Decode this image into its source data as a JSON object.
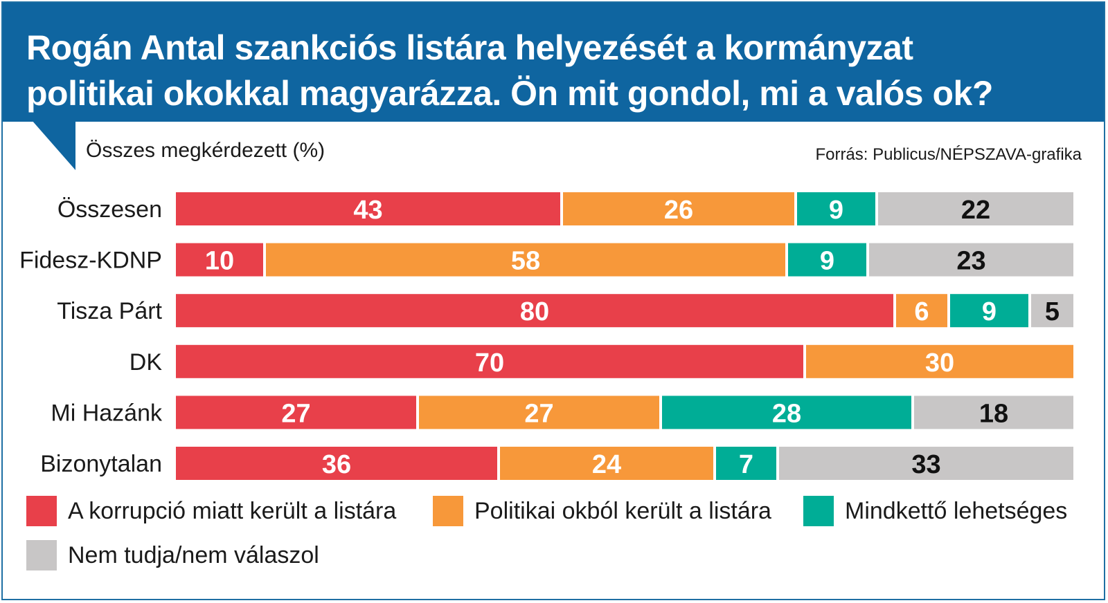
{
  "header": {
    "title_line1": "Rogán Antal szankciós listára helyezését a kormányzat",
    "title_line2": "politikai okokkal magyarázza. Ön mit gondol, mi a valós ok?"
  },
  "subtitle": "Összes megkérdezett (%)",
  "source": "Forrás: Publicus/NÉPSZAVA-grafika",
  "colors": {
    "header_bg": "#0f65a0",
    "corruption": "#e8404a",
    "political": "#f7983a",
    "both": "#00ad96",
    "dont_know": "#c8c6c6"
  },
  "chart_data": {
    "type": "bar",
    "orientation": "horizontal",
    "stacked": true,
    "title": "Rogán Antal szankciós listára helyezését a kormányzat politikai okokkal magyarázza. Ön mit gondol, mi a valós ok?",
    "ylabel": "Összes megkérdezett (%)",
    "categories": [
      "Összesen",
      "Fidesz-KDNP",
      "Tisza Párt",
      "DK",
      "Mi Hazánk",
      "Bizonytalan"
    ],
    "series": [
      {
        "name": "A korrupció miatt került a listára",
        "values": [
          43,
          10,
          80,
          70,
          27,
          36
        ]
      },
      {
        "name": "Politikai okból került a listára",
        "values": [
          26,
          58,
          6,
          30,
          27,
          24
        ]
      },
      {
        "name": "Mindkettő lehetséges",
        "values": [
          9,
          9,
          9,
          0,
          28,
          7
        ]
      },
      {
        "name": "Nem tudja/nem válaszol",
        "values": [
          22,
          23,
          5,
          0,
          18,
          33
        ]
      }
    ],
    "xlim": [
      0,
      100
    ],
    "legend_position": "bottom",
    "grid": false
  }
}
